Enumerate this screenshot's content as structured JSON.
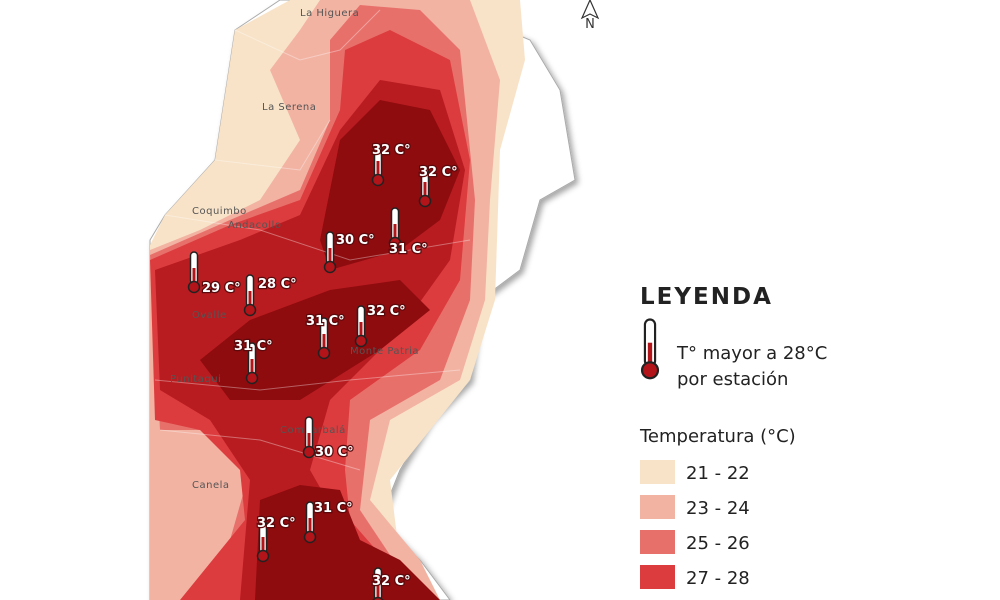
{
  "north_label": "N",
  "places": [
    {
      "name": "La Higuera"
    },
    {
      "name": "La Serena"
    },
    {
      "name": "Coquimbo"
    },
    {
      "name": "Andacollo"
    },
    {
      "name": "Ovalle"
    },
    {
      "name": "Punitaqui"
    },
    {
      "name": "Monte Patria"
    },
    {
      "name": "Combarbalá"
    },
    {
      "name": "Canela"
    }
  ],
  "stations": [
    {
      "label": "32 C°"
    },
    {
      "label": "32 C°"
    },
    {
      "label": "30 C°"
    },
    {
      "label": "31 C°"
    },
    {
      "label": "29 C°"
    },
    {
      "label": "28 C°"
    },
    {
      "label": "31 C°"
    },
    {
      "label": "32 C°"
    },
    {
      "label": "31 C°"
    },
    {
      "label": "30 C°"
    },
    {
      "label": "32 C°"
    },
    {
      "label": "31 C°"
    },
    {
      "label": "32 C°"
    }
  ],
  "legend": {
    "title": "LEYENDA",
    "thermometer_text": [
      "T° mayor a 28°C",
      "por estación"
    ],
    "scale_title": "Temperatura (°C)",
    "classes": [
      {
        "label": "21 - 22",
        "color": "#f8e3c8"
      },
      {
        "label": "23 - 24",
        "color": "#f2b3a3"
      },
      {
        "label": "25 - 26",
        "color": "#e8706b"
      },
      {
        "label": "27 - 28",
        "color": "#dc3c3e"
      }
    ]
  }
}
